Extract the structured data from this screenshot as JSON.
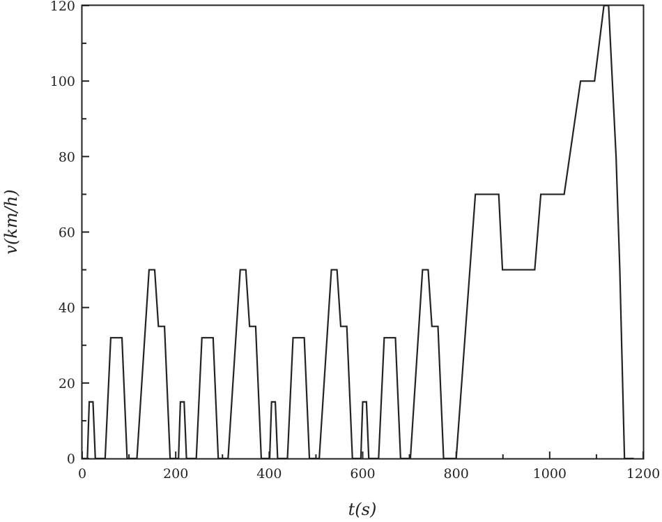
{
  "chart_data": {
    "type": "line",
    "title": "",
    "xlabel": "t(s)",
    "xlabel_var": "t",
    "xlabel_unit": "(s)",
    "ylabel": "v(km/h)",
    "xlim": [
      0,
      1200
    ],
    "ylim": [
      0,
      120
    ],
    "xticks": [
      0,
      200,
      400,
      600,
      800,
      1000,
      1200
    ],
    "yticks": [
      0,
      20,
      40,
      60,
      80,
      100,
      120
    ],
    "grid": false,
    "legend": "none",
    "line_color": "#222222",
    "series": [
      {
        "x": [
          0,
          11,
          15,
          23,
          28,
          49,
          61,
          85,
          96,
          117,
          143,
          155,
          163,
          176,
          188,
          195,
          206,
          210,
          218,
          223,
          244,
          256,
          280,
          291,
          312,
          338,
          350,
          358,
          371,
          383,
          390,
          401,
          405,
          413,
          418,
          439,
          451,
          475,
          486,
          507,
          533,
          545,
          553,
          566,
          578,
          585,
          596,
          600,
          608,
          613,
          634,
          646,
          670,
          681,
          702,
          728,
          740,
          748,
          761,
          773,
          780,
          800,
          841,
          891,
          899,
          968,
          981,
          1031,
          1066,
          1096,
          1116,
          1126,
          1142,
          1150,
          1160,
          1180
        ],
        "y": [
          0,
          0,
          15,
          15,
          0,
          0,
          32,
          32,
          0,
          0,
          50,
          50,
          35,
          35,
          0,
          0,
          0,
          15,
          15,
          0,
          0,
          32,
          32,
          0,
          0,
          50,
          50,
          35,
          35,
          0,
          0,
          0,
          15,
          15,
          0,
          0,
          32,
          32,
          0,
          0,
          50,
          50,
          35,
          35,
          0,
          0,
          0,
          15,
          15,
          0,
          0,
          32,
          32,
          0,
          0,
          50,
          50,
          35,
          35,
          0,
          0,
          0,
          70,
          70,
          50,
          50,
          70,
          70,
          100,
          100,
          120,
          120,
          80,
          50,
          0,
          0
        ]
      }
    ]
  }
}
